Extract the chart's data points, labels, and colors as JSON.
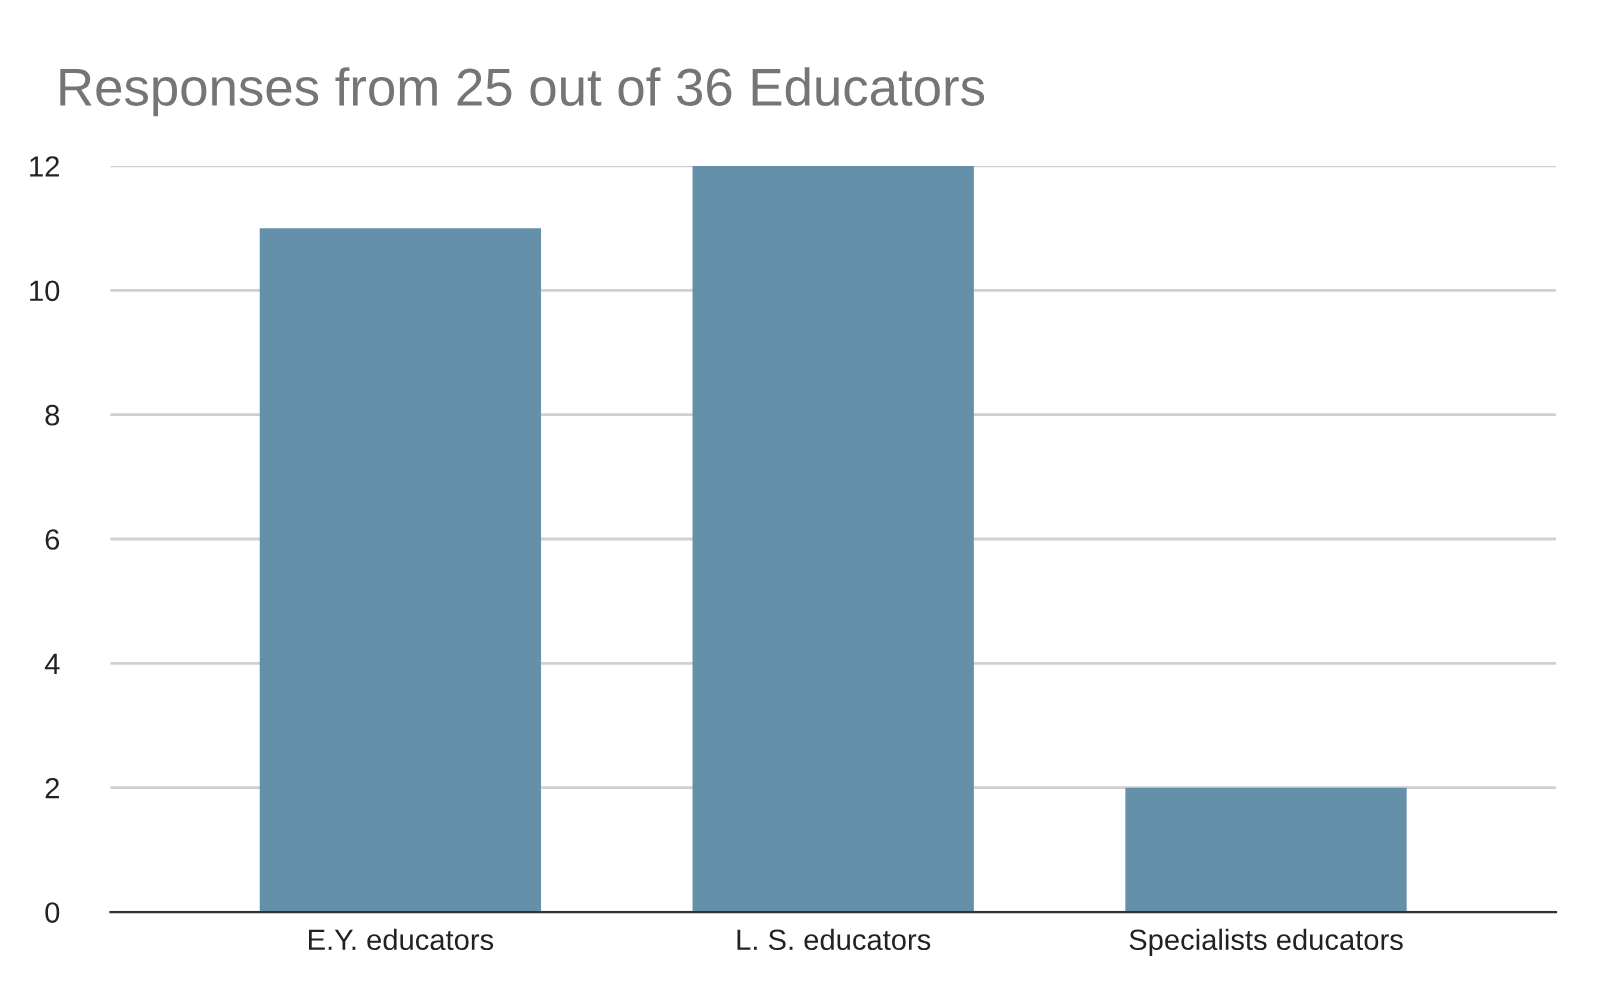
{
  "chart_data": {
    "type": "bar",
    "title": "Responses from 25 out of 36 Educators",
    "categories": [
      "E.Y. educators",
      "L. S. educators",
      "Specialists educators"
    ],
    "values": [
      11,
      12,
      2
    ],
    "color": "#6590aa",
    "ylim": [
      0,
      12
    ],
    "yticks": [
      0,
      2,
      4,
      6,
      8,
      10,
      12
    ],
    "grid": "y",
    "legend": false
  }
}
